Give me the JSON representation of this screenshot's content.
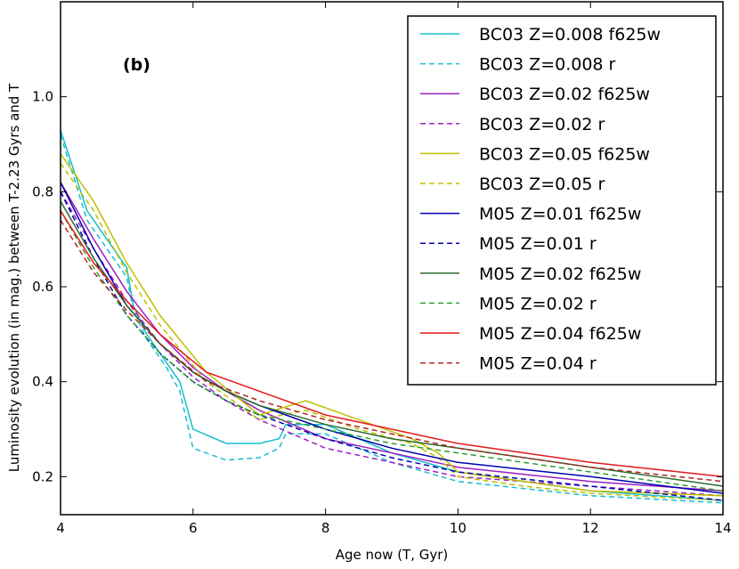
{
  "chart_data": {
    "type": "line",
    "panel_label": "(b)",
    "xlabel": "Age now (T, Gyr)",
    "ylabel": "Luminosity evolution (in mag.) between T-2.23 Gyrs and T",
    "xlim": [
      4,
      14
    ],
    "ylim": [
      0.12,
      1.2
    ],
    "xticks": [
      4,
      6,
      8,
      10,
      12,
      14
    ],
    "yticks": [
      0.2,
      0.4,
      0.6,
      0.8,
      1.0
    ],
    "xtick_labels": [
      "4",
      "6",
      "8",
      "10",
      "12",
      "14"
    ],
    "ytick_labels": [
      "0.2",
      "0.4",
      "0.6",
      "0.8",
      "1.0"
    ],
    "grid": false,
    "legend_position": "top-right",
    "series": [
      {
        "name": "BC03 Z=0.008 f625w",
        "color": "#17becf",
        "dash": "solid",
        "points": [
          [
            4.0,
            0.93
          ],
          [
            4.4,
            0.76
          ],
          [
            4.8,
            0.68
          ],
          [
            5.0,
            0.64
          ],
          [
            5.1,
            0.56
          ],
          [
            5.3,
            0.5
          ],
          [
            5.6,
            0.44
          ],
          [
            5.8,
            0.4
          ],
          [
            6.0,
            0.3
          ],
          [
            6.5,
            0.27
          ],
          [
            7.0,
            0.27
          ],
          [
            7.3,
            0.28
          ],
          [
            7.4,
            0.31
          ],
          [
            8.0,
            0.31
          ],
          [
            9.0,
            0.25
          ],
          [
            10.0,
            0.21
          ],
          [
            12.0,
            0.17
          ],
          [
            14.0,
            0.15
          ]
        ]
      },
      {
        "name": "BC03 Z=0.008 r",
        "color": "#17becf",
        "dash": "dashed",
        "points": [
          [
            4.0,
            0.92
          ],
          [
            4.4,
            0.74
          ],
          [
            4.8,
            0.66
          ],
          [
            5.0,
            0.62
          ],
          [
            5.1,
            0.55
          ],
          [
            5.3,
            0.49
          ],
          [
            5.6,
            0.43
          ],
          [
            5.8,
            0.38
          ],
          [
            6.0,
            0.26
          ],
          [
            6.5,
            0.235
          ],
          [
            7.0,
            0.24
          ],
          [
            7.3,
            0.26
          ],
          [
            7.4,
            0.29
          ],
          [
            8.0,
            0.29
          ],
          [
            9.0,
            0.23
          ],
          [
            10.0,
            0.19
          ],
          [
            12.0,
            0.16
          ],
          [
            14.0,
            0.145
          ]
        ]
      },
      {
        "name": "BC03 Z=0.02 f625w",
        "color": "#9b1fbf",
        "dash": "solid",
        "points": [
          [
            4.0,
            0.82
          ],
          [
            4.5,
            0.7
          ],
          [
            5.0,
            0.59
          ],
          [
            5.5,
            0.5
          ],
          [
            6.0,
            0.43
          ],
          [
            6.5,
            0.38
          ],
          [
            7.0,
            0.34
          ],
          [
            8.0,
            0.28
          ],
          [
            9.0,
            0.25
          ],
          [
            10.0,
            0.22
          ],
          [
            12.0,
            0.19
          ],
          [
            14.0,
            0.17
          ]
        ]
      },
      {
        "name": "BC03 Z=0.02 r",
        "color": "#9b1fbf",
        "dash": "dashed",
        "points": [
          [
            4.0,
            0.8
          ],
          [
            4.5,
            0.68
          ],
          [
            5.0,
            0.57
          ],
          [
            5.5,
            0.48
          ],
          [
            6.0,
            0.41
          ],
          [
            6.5,
            0.36
          ],
          [
            7.0,
            0.32
          ],
          [
            8.0,
            0.26
          ],
          [
            9.0,
            0.23
          ],
          [
            10.0,
            0.2
          ],
          [
            12.0,
            0.18
          ],
          [
            14.0,
            0.16
          ]
        ]
      },
      {
        "name": "BC03 Z=0.05 f625w",
        "color": "#bfbf00",
        "dash": "solid",
        "points": [
          [
            4.0,
            0.88
          ],
          [
            4.5,
            0.78
          ],
          [
            5.0,
            0.65
          ],
          [
            5.5,
            0.54
          ],
          [
            6.2,
            0.42
          ],
          [
            7.0,
            0.33
          ],
          [
            7.7,
            0.36
          ],
          [
            8.5,
            0.32
          ],
          [
            9.3,
            0.28
          ],
          [
            9.7,
            0.25
          ],
          [
            10.0,
            0.21
          ],
          [
            11.0,
            0.19
          ],
          [
            12.0,
            0.17
          ],
          [
            14.0,
            0.16
          ]
        ]
      },
      {
        "name": "BC03 Z=0.05 r",
        "color": "#bfbf00",
        "dash": "dashed",
        "points": [
          [
            4.0,
            0.86
          ],
          [
            4.5,
            0.76
          ],
          [
            5.0,
            0.63
          ],
          [
            5.5,
            0.52
          ],
          [
            6.2,
            0.4
          ],
          [
            7.0,
            0.32
          ],
          [
            7.7,
            0.34
          ],
          [
            8.5,
            0.3
          ],
          [
            9.3,
            0.27
          ],
          [
            9.7,
            0.24
          ],
          [
            10.0,
            0.2
          ],
          [
            11.0,
            0.18
          ],
          [
            12.0,
            0.165
          ],
          [
            14.0,
            0.15
          ]
        ]
      },
      {
        "name": "M05 Z=0.01 f625w",
        "color": "#0000b0",
        "dash": "solid",
        "points": [
          [
            4.0,
            0.82
          ],
          [
            4.5,
            0.68
          ],
          [
            5.0,
            0.56
          ],
          [
            5.5,
            0.48
          ],
          [
            6.0,
            0.42
          ],
          [
            6.5,
            0.38
          ],
          [
            7.0,
            0.35
          ],
          [
            8.0,
            0.3
          ],
          [
            9.0,
            0.26
          ],
          [
            10.0,
            0.23
          ],
          [
            12.0,
            0.2
          ],
          [
            14.0,
            0.165
          ]
        ]
      },
      {
        "name": "M05 Z=0.01 r",
        "color": "#0000b0",
        "dash": "dashed",
        "points": [
          [
            4.0,
            0.8
          ],
          [
            4.5,
            0.66
          ],
          [
            5.0,
            0.54
          ],
          [
            5.5,
            0.46
          ],
          [
            6.0,
            0.4
          ],
          [
            6.5,
            0.36
          ],
          [
            7.0,
            0.33
          ],
          [
            8.0,
            0.28
          ],
          [
            9.0,
            0.24
          ],
          [
            10.0,
            0.21
          ],
          [
            12.0,
            0.18
          ],
          [
            14.0,
            0.15
          ]
        ]
      },
      {
        "name": "M05 Z=0.02 f625w",
        "color": "#2e6b2e",
        "dash": "solid",
        "points": [
          [
            4.0,
            0.78
          ],
          [
            4.5,
            0.66
          ],
          [
            5.0,
            0.56
          ],
          [
            5.5,
            0.48
          ],
          [
            6.0,
            0.42
          ],
          [
            6.5,
            0.38
          ],
          [
            7.0,
            0.35
          ],
          [
            8.0,
            0.31
          ],
          [
            9.0,
            0.28
          ],
          [
            10.0,
            0.26
          ],
          [
            12.0,
            0.22
          ],
          [
            14.0,
            0.18
          ]
        ]
      },
      {
        "name": "M05 Z=0.02 r",
        "color": "#2ca02c",
        "dash": "dashed",
        "points": [
          [
            4.0,
            0.76
          ],
          [
            4.5,
            0.64
          ],
          [
            5.0,
            0.54
          ],
          [
            5.5,
            0.46
          ],
          [
            6.0,
            0.4
          ],
          [
            6.5,
            0.36
          ],
          [
            7.0,
            0.33
          ],
          [
            8.0,
            0.3
          ],
          [
            9.0,
            0.27
          ],
          [
            10.0,
            0.25
          ],
          [
            12.0,
            0.21
          ],
          [
            14.0,
            0.17
          ]
        ]
      },
      {
        "name": "M05 Z=0.04 f625w",
        "color": "#e31a1c",
        "dash": "solid",
        "points": [
          [
            4.0,
            0.76
          ],
          [
            4.5,
            0.65
          ],
          [
            5.0,
            0.57
          ],
          [
            5.5,
            0.5
          ],
          [
            6.2,
            0.42
          ],
          [
            7.0,
            0.38
          ],
          [
            8.0,
            0.33
          ],
          [
            9.0,
            0.3
          ],
          [
            10.0,
            0.27
          ],
          [
            12.0,
            0.23
          ],
          [
            14.0,
            0.2
          ]
        ]
      },
      {
        "name": "M05 Z=0.04 r",
        "color": "#b22222",
        "dash": "dashed",
        "points": [
          [
            4.0,
            0.74
          ],
          [
            4.5,
            0.63
          ],
          [
            5.0,
            0.55
          ],
          [
            5.5,
            0.48
          ],
          [
            6.2,
            0.4
          ],
          [
            7.0,
            0.36
          ],
          [
            8.0,
            0.32
          ],
          [
            9.0,
            0.29
          ],
          [
            10.0,
            0.26
          ],
          [
            12.0,
            0.22
          ],
          [
            14.0,
            0.19
          ]
        ]
      }
    ]
  }
}
